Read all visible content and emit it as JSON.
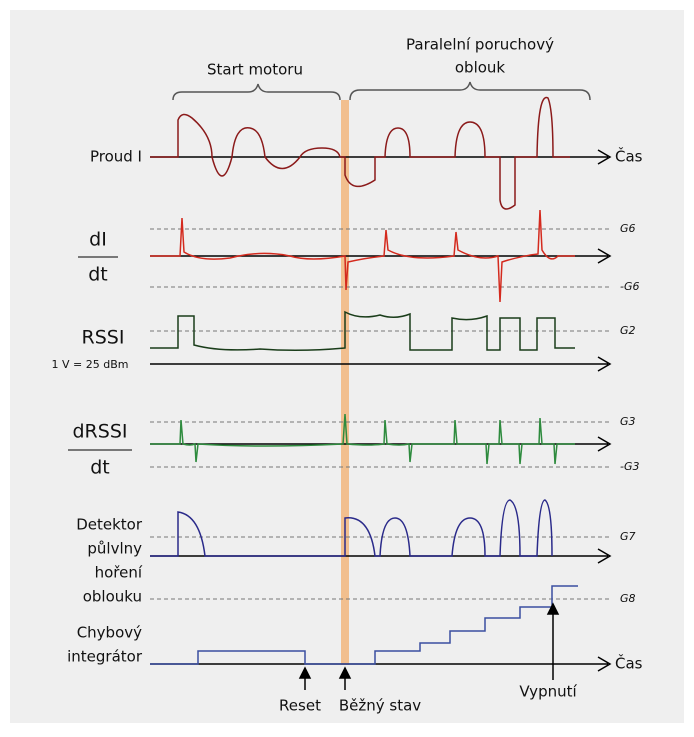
{
  "header": {
    "start": "Start motoru",
    "fault": [
      "Paralelní poruchový",
      "oblouk"
    ]
  },
  "rows": [
    {
      "label": [
        "Proud I"
      ],
      "axis": "Čas"
    },
    {
      "label": [
        "dI",
        "dt"
      ],
      "thresholds": [
        "G6",
        "-G6"
      ]
    },
    {
      "label": [
        "RSSI"
      ],
      "note": "1 V = 25 dBm",
      "thresholds": [
        "G2"
      ]
    },
    {
      "label": [
        "dRSSI",
        "dt"
      ],
      "thresholds": [
        "G3",
        "-G3"
      ]
    },
    {
      "label": [
        "Detektor",
        "půlvlny",
        "hoření",
        "oblouku"
      ],
      "thresholds": [
        "G7",
        "G8"
      ]
    },
    {
      "label": [
        "Chybový",
        "integrátor"
      ],
      "axis": "Čas"
    }
  ],
  "markers": [
    "Reset",
    "Běžný stav",
    "Vypnutí"
  ]
}
